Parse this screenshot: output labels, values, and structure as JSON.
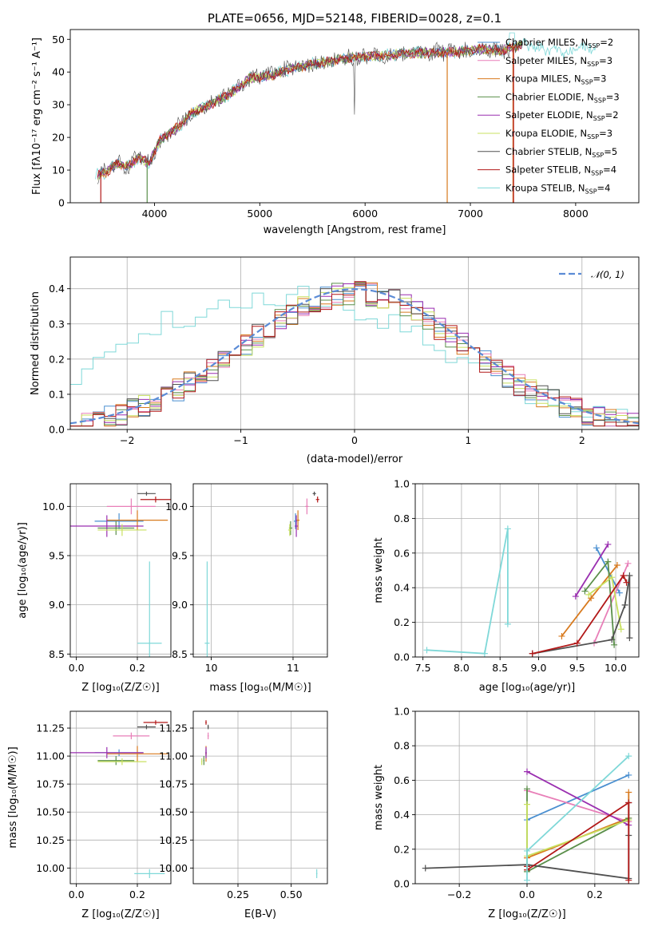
{
  "colors": {
    "Chabrier MILES": "#4a8fd0",
    "Salpeter MILES": "#e87fb8",
    "Kroupa MILES": "#d87a1e",
    "Chabrier ELODIE": "#5a8f4a",
    "Salpeter ELODIE": "#9a2fb0",
    "Kroupa ELODIE": "#c8e060",
    "Chabrier STELIB": "#505050",
    "Salpeter STELIB": "#b21818",
    "Kroupa STELIB": "#7fd8d8",
    "normal": "#5b8bd6"
  },
  "chart_data": [
    {
      "id": "spectrum",
      "type": "line",
      "title": "PLATE=0656, MJD=52148, FIBERID=0028, z=0.1",
      "xlabel": "wavelength [Angstrom, rest frame]",
      "ylabel": "Flux [fλ10⁻¹⁷ erg cm⁻² s⁻¹ A⁻¹]",
      "xlim": [
        3200,
        8600
      ],
      "ylim": [
        0,
        53
      ],
      "xticks": [
        4000,
        5000,
        6000,
        7000,
        8000
      ],
      "yticks": [
        0,
        10,
        20,
        30,
        40,
        50
      ],
      "grid": false,
      "legend_position": "right",
      "continuum": {
        "x": [
          3450,
          3550,
          3650,
          3750,
          3850,
          3950,
          4050,
          4150,
          4250,
          4350,
          4500,
          4700,
          4900,
          5100,
          5300,
          5500,
          5700,
          5900,
          6100,
          6300,
          6500,
          6700,
          6900,
          7100,
          7300,
          7500,
          7700,
          7900,
          8100,
          8300
        ],
        "y": [
          8.5,
          9.5,
          12,
          11,
          14,
          12,
          19,
          21.5,
          24,
          27.5,
          29.5,
          33,
          38,
          39,
          41,
          42.5,
          43.5,
          44.5,
          45,
          45.5,
          45.8,
          46,
          46.2,
          47,
          46.5,
          48.5,
          47,
          46,
          47.5,
          47
        ]
      },
      "series": [
        {
          "name": "Chabrier MILES, N_SSP=2",
          "label_main": "Chabrier MILES, N",
          "label_sub": "SSP",
          "label_end": "=2"
        },
        {
          "name": "Salpeter MILES, N_SSP=3",
          "label_main": "Salpeter MILES, N",
          "label_sub": "SSP",
          "label_end": "=3"
        },
        {
          "name": "Kroupa MILES, N_SSP=3",
          "label_main": "Kroupa MILES, N",
          "label_sub": "SSP",
          "label_end": "=3"
        },
        {
          "name": "Chabrier ELODIE, N_SSP=3",
          "label_main": "Chabrier ELODIE, N",
          "label_sub": "SSP",
          "label_end": "=3"
        },
        {
          "name": "Salpeter ELODIE, N_SSP=2",
          "label_main": "Salpeter ELODIE, N",
          "label_sub": "SSP",
          "label_end": "=2"
        },
        {
          "name": "Kroupa ELODIE, N_SSP=3",
          "label_main": "Kroupa ELODIE, N",
          "label_sub": "SSP",
          "label_end": "=3"
        },
        {
          "name": "Chabrier STELIB, N_SSP=5",
          "label_main": "Chabrier STELIB, N",
          "label_sub": "SSP",
          "label_end": "=5"
        },
        {
          "name": "Salpeter STELIB, N_SSP=4",
          "label_main": "Salpeter STELIB, N",
          "label_sub": "SSP",
          "label_end": "=4"
        },
        {
          "name": "Kroupa STELIB, N_SSP=4",
          "label_main": "Kroupa STELIB, N",
          "label_sub": "SSP",
          "label_end": "=4"
        }
      ]
    },
    {
      "id": "residuals",
      "type": "histogram",
      "xlabel": "(data-model)/error",
      "ylabel": "Normed distribution",
      "xlim": [
        -2.5,
        2.5
      ],
      "ylim": [
        0,
        0.49
      ],
      "xticks": [
        -2,
        -1,
        0,
        1,
        2
      ],
      "yticks": [
        0.0,
        0.1,
        0.2,
        0.3,
        0.4
      ],
      "grid": true,
      "legend": "𝒩(0, 1)",
      "legend_position": "top-right",
      "bin_edges_start": -2.5,
      "bin_width": 0.1
    },
    {
      "id": "age-vs-Z",
      "type": "errorbar",
      "xlabel": "Z [log₁₀(Z/Z☉)]",
      "ylabel": "age  [log₁₀(age/yr)]",
      "xlim": [
        -0.02,
        0.31
      ],
      "ylim": [
        8.47,
        10.23
      ],
      "xticks": [
        0.0,
        0.2
      ],
      "yticks": [
        8.5,
        9.0,
        9.5,
        10.0
      ],
      "grid": true,
      "points": [
        {
          "series": "Chabrier MILES",
          "x": 0.14,
          "xerr": 0.08,
          "y": 9.85,
          "yerr": 0.08
        },
        {
          "series": "Salpeter MILES",
          "x": 0.18,
          "xerr": 0.08,
          "y": 10.0,
          "yerr": 0.08
        },
        {
          "series": "Kroupa MILES",
          "x": 0.2,
          "xerr": 0.1,
          "y": 9.86,
          "yerr": 0.1
        },
        {
          "series": "Chabrier ELODIE",
          "x": 0.13,
          "xerr": 0.06,
          "y": 9.78,
          "yerr": 0.07
        },
        {
          "series": "Salpeter ELODIE",
          "x": 0.1,
          "xerr": 0.12,
          "y": 9.8,
          "yerr": 0.11
        },
        {
          "series": "Kroupa ELODIE",
          "x": 0.15,
          "xerr": 0.08,
          "y": 9.76,
          "yerr": 0.06
        },
        {
          "series": "Chabrier STELIB",
          "x": 0.23,
          "xerr": 0.03,
          "y": 10.13,
          "yerr": 0.02
        },
        {
          "series": "Salpeter STELIB",
          "x": 0.26,
          "xerr": 0.05,
          "y": 10.07,
          "yerr": 0.03
        },
        {
          "series": "Kroupa STELIB",
          "x": 0.24,
          "xerr": 0.04,
          "y": 8.61,
          "yerr": 0.83
        }
      ]
    },
    {
      "id": "age-vs-mass",
      "type": "errorbar",
      "xlabel": "mass [log₁₀(M/M☉)]",
      "ylabel": "",
      "xlim": [
        9.78,
        11.42
      ],
      "ylim": [
        8.47,
        10.23
      ],
      "xticks": [
        10,
        11
      ],
      "yticks": [
        8.5,
        9.0,
        9.5,
        10.0
      ],
      "grid": true,
      "points": [
        {
          "series": "Chabrier MILES",
          "x": 11.03,
          "xerr": 0.02,
          "y": 9.85,
          "yerr": 0.08
        },
        {
          "series": "Salpeter MILES",
          "x": 11.17,
          "xerr": 0.02,
          "y": 10.0,
          "yerr": 0.08
        },
        {
          "series": "Kroupa MILES",
          "x": 11.06,
          "xerr": 0.02,
          "y": 9.86,
          "yerr": 0.1
        },
        {
          "series": "Chabrier ELODIE",
          "x": 10.97,
          "xerr": 0.02,
          "y": 9.78,
          "yerr": 0.07
        },
        {
          "series": "Salpeter ELODIE",
          "x": 11.04,
          "xerr": 0.02,
          "y": 9.8,
          "yerr": 0.11
        },
        {
          "series": "Kroupa ELODIE",
          "x": 10.96,
          "xerr": 0.02,
          "y": 9.76,
          "yerr": 0.06
        },
        {
          "series": "Chabrier STELIB",
          "x": 11.26,
          "xerr": 0.02,
          "y": 10.13,
          "yerr": 0.02
        },
        {
          "series": "Salpeter STELIB",
          "x": 11.3,
          "xerr": 0.02,
          "y": 10.07,
          "yerr": 0.03
        },
        {
          "series": "Kroupa STELIB",
          "x": 9.95,
          "xerr": 0.03,
          "y": 8.61,
          "yerr": 0.83
        }
      ]
    },
    {
      "id": "weight-vs-age",
      "type": "line",
      "xlabel": "age  [log₁₀(age/yr)]",
      "ylabel": "mass weight",
      "xlim": [
        7.4,
        10.3
      ],
      "ylim": [
        0.0,
        1.0
      ],
      "xticks": [
        7.5,
        8.0,
        8.5,
        9.0,
        9.5,
        10.0
      ],
      "yticks": [
        0.0,
        0.2,
        0.4,
        0.6,
        0.8,
        1.0
      ],
      "grid": true,
      "series": [
        {
          "name": "Chabrier MILES",
          "x": [
            9.75,
            10.05
          ],
          "y": [
            0.63,
            0.37
          ]
        },
        {
          "name": "Salpeter MILES",
          "x": [
            9.72,
            10.16
          ],
          "y": [
            0.08,
            0.54
          ]
        },
        {
          "name": "Kroupa MILES",
          "x": [
            9.3,
            9.68,
            10.02
          ],
          "y": [
            0.12,
            0.34,
            0.53
          ]
        },
        {
          "name": "Chabrier ELODIE",
          "x": [
            9.6,
            9.9,
            9.98
          ],
          "y": [
            0.38,
            0.55,
            0.07
          ]
        },
        {
          "name": "Salpeter ELODIE",
          "x": [
            9.48,
            9.9
          ],
          "y": [
            0.35,
            0.65
          ]
        },
        {
          "name": "Kroupa ELODIE",
          "x": [
            9.65,
            9.95,
            10.07
          ],
          "y": [
            0.36,
            0.46,
            0.16
          ]
        },
        {
          "name": "Chabrier STELIB",
          "x": [
            8.92,
            9.95,
            10.12,
            10.18,
            10.18
          ],
          "y": [
            0.02,
            0.1,
            0.3,
            0.47,
            0.11
          ]
        },
        {
          "name": "Salpeter STELIB",
          "x": [
            8.92,
            9.5,
            10.1,
            10.14
          ],
          "y": [
            0.02,
            0.08,
            0.47,
            0.43
          ]
        },
        {
          "name": "Kroupa STELIB",
          "x": [
            7.55,
            8.3,
            8.6,
            8.6
          ],
          "y": [
            0.04,
            0.02,
            0.74,
            0.19
          ]
        }
      ]
    },
    {
      "id": "mass-vs-Z",
      "type": "errorbar",
      "xlabel": "Z [log₁₀(Z/Z☉)]",
      "ylabel": "mass [log₁₀(M/M☉)]",
      "xlim": [
        -0.02,
        0.31
      ],
      "ylim": [
        9.86,
        11.4
      ],
      "xticks": [
        0.0,
        0.2
      ],
      "yticks": [
        10.0,
        10.25,
        10.5,
        10.75,
        11.0,
        11.25
      ],
      "grid": true,
      "points": [
        {
          "series": "Chabrier MILES",
          "x": 0.14,
          "xerr": 0.08,
          "y": 11.03,
          "yerr": 0.03
        },
        {
          "series": "Salpeter MILES",
          "x": 0.18,
          "xerr": 0.06,
          "y": 11.18,
          "yerr": 0.03
        },
        {
          "series": "Kroupa MILES",
          "x": 0.2,
          "xerr": 0.1,
          "y": 11.02,
          "yerr": 0.07
        },
        {
          "series": "Chabrier ELODIE",
          "x": 0.13,
          "xerr": 0.06,
          "y": 10.96,
          "yerr": 0.04
        },
        {
          "series": "Salpeter ELODIE",
          "x": 0.1,
          "xerr": 0.12,
          "y": 11.03,
          "yerr": 0.05
        },
        {
          "series": "Kroupa ELODIE",
          "x": 0.15,
          "xerr": 0.08,
          "y": 10.95,
          "yerr": 0.03
        },
        {
          "series": "Chabrier STELIB",
          "x": 0.23,
          "xerr": 0.03,
          "y": 11.26,
          "yerr": 0.02
        },
        {
          "series": "Salpeter STELIB",
          "x": 0.26,
          "xerr": 0.04,
          "y": 11.3,
          "yerr": 0.02
        },
        {
          "series": "Kroupa STELIB",
          "x": 0.24,
          "xerr": 0.05,
          "y": 9.95,
          "yerr": 0.04
        }
      ]
    },
    {
      "id": "mass-vs-EBV",
      "type": "errorbar",
      "xlabel": "E(B-V)",
      "ylabel": "",
      "xlim": [
        0.04,
        0.67
      ],
      "ylim": [
        9.86,
        11.4
      ],
      "xticks": [
        0.25,
        0.5
      ],
      "yticks": [
        10.0,
        10.25,
        10.5,
        10.75,
        11.0,
        11.25
      ],
      "grid": true,
      "points": [
        {
          "series": "Chabrier MILES",
          "x": 0.1,
          "xerr": 0.003,
          "y": 11.03,
          "yerr": 0.03
        },
        {
          "series": "Salpeter MILES",
          "x": 0.11,
          "xerr": 0.003,
          "y": 11.18,
          "yerr": 0.03
        },
        {
          "series": "Kroupa MILES",
          "x": 0.1,
          "xerr": 0.003,
          "y": 11.02,
          "yerr": 0.07
        },
        {
          "series": "Chabrier ELODIE",
          "x": 0.09,
          "xerr": 0.003,
          "y": 10.96,
          "yerr": 0.04
        },
        {
          "series": "Salpeter ELODIE",
          "x": 0.1,
          "xerr": 0.003,
          "y": 11.03,
          "yerr": 0.05
        },
        {
          "series": "Kroupa ELODIE",
          "x": 0.08,
          "xerr": 0.003,
          "y": 10.95,
          "yerr": 0.03
        },
        {
          "series": "Chabrier STELIB",
          "x": 0.11,
          "xerr": 0.003,
          "y": 11.26,
          "yerr": 0.02
        },
        {
          "series": "Salpeter STELIB",
          "x": 0.1,
          "xerr": 0.003,
          "y": 11.3,
          "yerr": 0.02
        },
        {
          "series": "Kroupa STELIB",
          "x": 0.62,
          "xerr": 0.003,
          "y": 9.95,
          "yerr": 0.04
        }
      ]
    },
    {
      "id": "weight-vs-Z",
      "type": "line",
      "xlabel": "Z [log₁₀(Z/Z☉)]",
      "ylabel": "mass weight",
      "xlim": [
        -0.33,
        0.33
      ],
      "ylim": [
        0.0,
        1.0
      ],
      "xticks": [
        -0.2,
        0.0,
        0.2
      ],
      "yticks": [
        0.0,
        0.2,
        0.4,
        0.6,
        0.8,
        1.0
      ],
      "grid": true,
      "series": [
        {
          "name": "Chabrier MILES",
          "x": [
            0.0,
            0.3
          ],
          "y": [
            0.37,
            0.63
          ]
        },
        {
          "name": "Salpeter MILES",
          "x": [
            0.0,
            0.3
          ],
          "y": [
            0.54,
            0.36
          ]
        },
        {
          "name": "Kroupa MILES",
          "x": [
            0.0,
            0.3,
            0.3
          ],
          "y": [
            0.15,
            0.38,
            0.53
          ]
        },
        {
          "name": "Chabrier ELODIE",
          "x": [
            0.0,
            0.0,
            0.3
          ],
          "y": [
            0.55,
            0.07,
            0.38
          ]
        },
        {
          "name": "Salpeter ELODIE",
          "x": [
            0.0,
            0.3
          ],
          "y": [
            0.65,
            0.34
          ]
        },
        {
          "name": "Kroupa ELODIE",
          "x": [
            0.0,
            0.0,
            0.3
          ],
          "y": [
            0.46,
            0.16,
            0.37
          ]
        },
        {
          "name": "Chabrier STELIB",
          "x": [
            -0.3,
            0.0,
            0.3,
            0.3,
            0.3
          ],
          "y": [
            0.09,
            0.11,
            0.03,
            0.47,
            0.28
          ]
        },
        {
          "name": "Salpeter STELIB",
          "x": [
            0.0,
            0.0,
            0.3,
            0.3
          ],
          "y": [
            0.1,
            0.08,
            0.47,
            0.02
          ]
        },
        {
          "name": "Kroupa STELIB",
          "x": [
            0.0,
            0.0,
            0.3
          ],
          "y": [
            0.02,
            0.19,
            0.74
          ]
        }
      ]
    }
  ]
}
